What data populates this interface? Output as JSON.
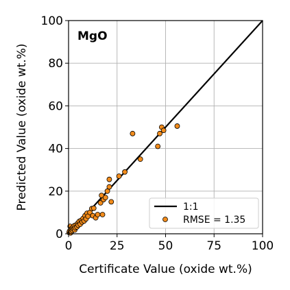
{
  "chart_data": {
    "type": "scatter",
    "title": "",
    "annotation": "MgO",
    "xlabel": "Certificate Value (oxide wt.%)",
    "ylabel": "Predicted Value (oxide wt.%)",
    "xlim": [
      0,
      100
    ],
    "ylim": [
      0,
      100
    ],
    "xticks": [
      0,
      25,
      50,
      75,
      100
    ],
    "yticks": [
      0,
      20,
      40,
      60,
      80,
      100
    ],
    "grid": true,
    "legend_position": "bottom-right",
    "reference_line": {
      "name": "1:1",
      "x": [
        0,
        100
      ],
      "y": [
        0,
        100
      ],
      "color": "#000000"
    },
    "series": [
      {
        "name": "RMSE = 1.35",
        "color": "#f28c1c",
        "edge_color": "#000000",
        "points": [
          [
            0.3,
            0.6
          ],
          [
            0.5,
            1.2
          ],
          [
            0.8,
            3.5
          ],
          [
            1.0,
            0.4
          ],
          [
            1.2,
            2.0
          ],
          [
            1.5,
            1.0
          ],
          [
            1.8,
            2.5
          ],
          [
            2.0,
            1.6
          ],
          [
            2.3,
            3.0
          ],
          [
            2.6,
            2.2
          ],
          [
            3.0,
            3.8
          ],
          [
            3.2,
            1.8
          ],
          [
            3.5,
            2.8
          ],
          [
            4.0,
            4.2
          ],
          [
            4.3,
            3.2
          ],
          [
            4.8,
            5.0
          ],
          [
            5.0,
            4.0
          ],
          [
            5.5,
            5.8
          ],
          [
            6.0,
            4.5
          ],
          [
            6.5,
            6.3
          ],
          [
            7.0,
            5.5
          ],
          [
            7.5,
            7.2
          ],
          [
            8.0,
            6.0
          ],
          [
            8.5,
            8.5
          ],
          [
            9.0,
            7.0
          ],
          [
            9.5,
            9.6
          ],
          [
            10.0,
            8.2
          ],
          [
            11.0,
            10.0
          ],
          [
            12.0,
            11.8
          ],
          [
            12.5,
            8.5
          ],
          [
            13.0,
            12.0
          ],
          [
            14.0,
            7.5
          ],
          [
            15.0,
            9.0
          ],
          [
            16.5,
            14.5
          ],
          [
            17.0,
            18.0
          ],
          [
            17.5,
            9.0
          ],
          [
            18.0,
            16.0
          ],
          [
            19.0,
            17.0
          ],
          [
            20.0,
            20.0
          ],
          [
            21.0,
            22.0
          ],
          [
            21.0,
            25.5
          ],
          [
            22.0,
            15.0
          ],
          [
            26.0,
            27.0
          ],
          [
            29.0,
            29.0
          ],
          [
            33.0,
            47.0
          ],
          [
            37.0,
            35.0
          ],
          [
            46.0,
            41.0
          ],
          [
            47.0,
            47.0
          ],
          [
            48.0,
            50.0
          ],
          [
            49.0,
            48.5
          ],
          [
            56.0,
            50.5
          ]
        ]
      }
    ]
  }
}
